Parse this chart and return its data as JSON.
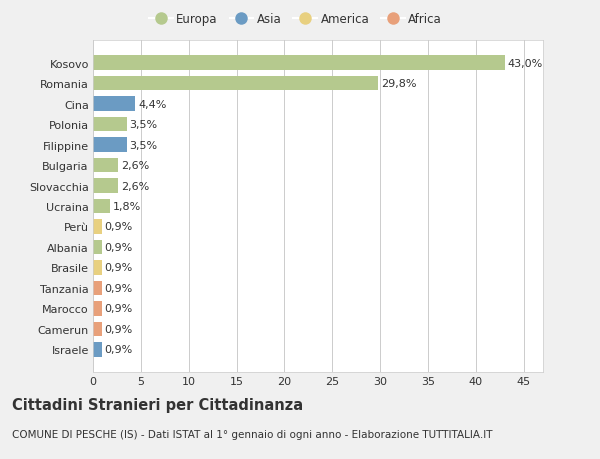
{
  "categories": [
    "Kosovo",
    "Romania",
    "Cina",
    "Polonia",
    "Filippine",
    "Bulgaria",
    "Slovacchia",
    "Ucraina",
    "Perù",
    "Albania",
    "Brasile",
    "Tanzania",
    "Marocco",
    "Camerun",
    "Israele"
  ],
  "values": [
    43.0,
    29.8,
    4.4,
    3.5,
    3.5,
    2.6,
    2.6,
    1.8,
    0.9,
    0.9,
    0.9,
    0.9,
    0.9,
    0.9,
    0.9
  ],
  "labels": [
    "43,0%",
    "29,8%",
    "4,4%",
    "3,5%",
    "3,5%",
    "2,6%",
    "2,6%",
    "1,8%",
    "0,9%",
    "0,9%",
    "0,9%",
    "0,9%",
    "0,9%",
    "0,9%",
    "0,9%"
  ],
  "continents": [
    "Europa",
    "Europa",
    "Asia",
    "Europa",
    "Asia",
    "Europa",
    "Europa",
    "Europa",
    "America",
    "Europa",
    "America",
    "Africa",
    "Africa",
    "Africa",
    "Asia"
  ],
  "colors": {
    "Europa": "#b5c98e",
    "Asia": "#6b9bc3",
    "America": "#e8d080",
    "Africa": "#e8a07a"
  },
  "legend_order": [
    "Europa",
    "Asia",
    "America",
    "Africa"
  ],
  "title": "Cittadini Stranieri per Cittadinanza",
  "subtitle": "COMUNE DI PESCHE (IS) - Dati ISTAT al 1° gennaio di ogni anno - Elaborazione TUTTITALIA.IT",
  "xlim": [
    0,
    47
  ],
  "xticks": [
    0,
    5,
    10,
    15,
    20,
    25,
    30,
    35,
    40,
    45
  ],
  "bg_color": "#f0f0f0",
  "plot_bg_color": "#ffffff",
  "grid_color": "#cccccc",
  "text_color": "#333333",
  "label_fontsize": 8.0,
  "tick_fontsize": 8.0,
  "title_fontsize": 10.5,
  "subtitle_fontsize": 7.5
}
